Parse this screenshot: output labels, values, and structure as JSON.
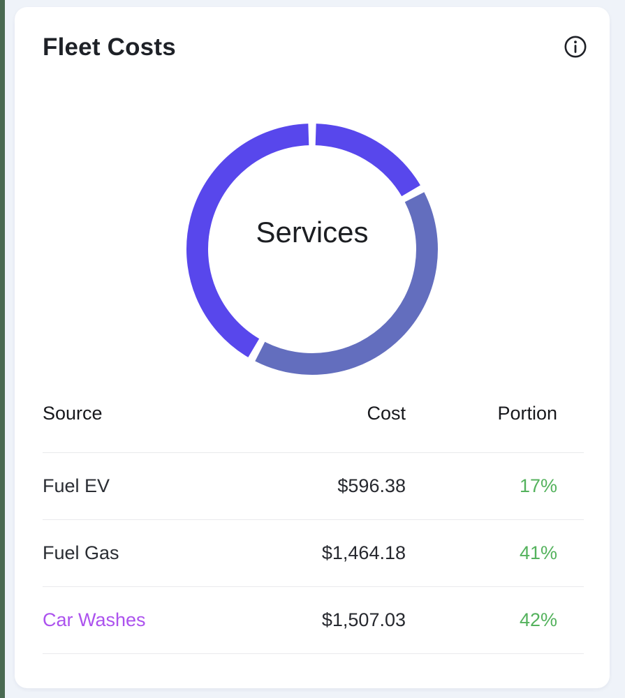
{
  "page": {
    "background": "#EFF3F9",
    "left_strip_color": "#4A6A52"
  },
  "card": {
    "title": "Fleet Costs",
    "background": "#FFFFFF"
  },
  "icons": {
    "info": "circled-i"
  },
  "chart_data": {
    "type": "pie",
    "subtype": "donut",
    "center_label": "Services",
    "direction": "clockwise",
    "start_angle_deg": 0,
    "pad_angle_deg": 3.6,
    "ring_outer_radius_px": 180,
    "ring_thickness_px": 31,
    "segments": [
      {
        "label": "Fuel EV",
        "percent": 17,
        "color": "#5847EC"
      },
      {
        "label": "Fuel Gas",
        "percent": 41,
        "color": "#636EBE"
      },
      {
        "label": "Car Washes",
        "percent": 42,
        "color": "#5847EC"
      }
    ]
  },
  "table": {
    "columns": [
      "Source",
      "Cost",
      "Portion"
    ],
    "rows": [
      {
        "source": "Fuel EV",
        "cost": "$596.38",
        "portion": "17%",
        "source_color": "#2A2D33"
      },
      {
        "source": "Fuel Gas",
        "cost": "$1,464.18",
        "portion": "41%",
        "source_color": "#2A2D33"
      },
      {
        "source": "Car Washes",
        "cost": "$1,507.03",
        "portion": "42%",
        "source_color": "#AC52EE"
      }
    ],
    "portion_color": "#54B25D"
  }
}
